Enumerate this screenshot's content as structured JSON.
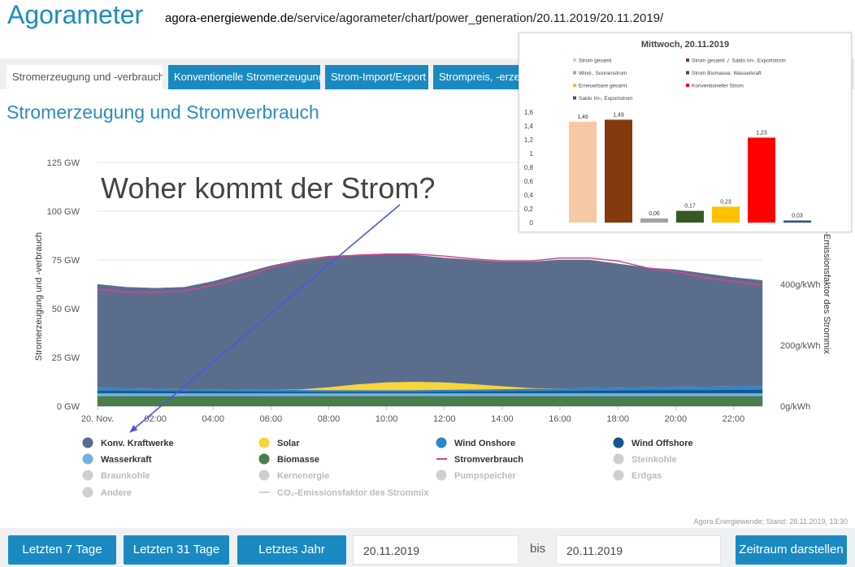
{
  "header": {
    "title": "Agorameter",
    "url_domain": "agora-energiewende.de",
    "url_path": "/service/agorameter/chart/power_generation/20.11.2019/20.11.2019/"
  },
  "tabs": [
    "Stromerzeugung und -verbrauch",
    "Konventionelle Stromerzeugung",
    "Strom-Import/Export",
    "Strompreis, -erzeugung"
  ],
  "section_title": "Stromerzeugung und Stromverbrauch",
  "source": "Agora Energiewende; Stand: 28.11.2019, 13:30",
  "controls": {
    "buttons": [
      "Letzten 7 Tage",
      "Letzten 31 Tage",
      "Letztes Jahr"
    ],
    "date_from": "20.11.2019",
    "between": "bis",
    "date_to": "20.11.2019",
    "submit": "Zeitraum darstellen"
  },
  "chart_data": [
    {
      "type": "stacked-area",
      "annotation": "Woher kommt der Strom?",
      "y_label": "Stromerzeugung und -verbrauch",
      "y2_label": "-Emissionsfaktor des Strommix",
      "categories": [
        "20. Nov.",
        null,
        "02:00",
        null,
        "04:00",
        null,
        "06:00",
        null,
        "08:00",
        null,
        "10:00",
        null,
        "12:00",
        null,
        "14:00",
        null,
        "16:00",
        null,
        "18:00",
        null,
        "20:00",
        null,
        "22:00",
        null
      ],
      "ylim": [
        0,
        125
      ],
      "yticks": [
        {
          "value": 0,
          "label": "0 GW"
        },
        {
          "value": 25,
          "label": "25 GW"
        },
        {
          "value": 50,
          "label": "50 GW"
        },
        {
          "value": 75,
          "label": "75 GW"
        },
        {
          "value": 100,
          "label": "100 GW"
        },
        {
          "value": 125,
          "label": "125 GW"
        }
      ],
      "y2lim": [
        0,
        800
      ],
      "y2ticks": [
        {
          "value": 0,
          "label": "0g/kWh"
        },
        {
          "value": 200,
          "label": "200g/kWh"
        },
        {
          "value": 400,
          "label": "400g/kWh"
        }
      ],
      "grid": true,
      "series": [
        {
          "name": "Konv. Kraftwerke",
          "type": "area",
          "color": "#5b6d8d",
          "values": [
            53.1,
            51.7,
            51.4,
            52.1,
            55.2,
            59.4,
            63.5,
            66.3,
            67.2,
            66.2,
            65.7,
            64.9,
            63.7,
            63.6,
            63.7,
            64.6,
            65.8,
            65.6,
            63.4,
            61.2,
            60,
            57.9,
            55.7,
            54.1
          ]
        },
        {
          "name": "Solar",
          "type": "area",
          "color": "#f8d53a",
          "values": [
            0,
            0,
            0,
            0,
            0,
            0,
            0,
            0.3,
            1.5,
            3.0,
            4.0,
            4.3,
            3.8,
            2.8,
            1.5,
            0.4,
            0,
            0,
            0,
            0,
            0,
            0,
            0,
            0
          ]
        },
        {
          "name": "Wind Onshore",
          "type": "area",
          "color": "#2f87c9",
          "values": [
            1.5,
            1.4,
            1.3,
            1.2,
            1.1,
            1.0,
            1.0,
            0.9,
            0.9,
            0.9,
            0.9,
            0.9,
            1.0,
            1.0,
            1.1,
            1.2,
            1.3,
            1.4,
            1.5,
            1.6,
            1.7,
            1.8,
            1.9,
            2.0
          ]
        },
        {
          "name": "Wind Offshore",
          "type": "area",
          "color": "#15548f",
          "values": [
            1.2,
            1.2,
            1.1,
            1.0,
            1.0,
            0.9,
            0.8,
            0.8,
            0.7,
            0.7,
            0.7,
            0.7,
            0.8,
            0.9,
            1.0,
            1.1,
            1.2,
            1.3,
            1.4,
            1.5,
            1.6,
            1.6,
            1.7,
            1.7
          ]
        },
        {
          "name": "Wasserkraft",
          "type": "area",
          "color": "#73b2de",
          "values": [
            1.5,
            1.5,
            1.5,
            1.5,
            1.5,
            1.5,
            1.5,
            1.5,
            1.5,
            1.5,
            1.5,
            1.5,
            1.5,
            1.5,
            1.5,
            1.5,
            1.5,
            1.5,
            1.5,
            1.5,
            1.5,
            1.5,
            1.5,
            1.5
          ]
        },
        {
          "name": "Biomasse",
          "type": "area",
          "color": "#4a7c4c",
          "values": [
            5.2,
            5.2,
            5.2,
            5.2,
            5.2,
            5.2,
            5.2,
            5.2,
            5.2,
            5.2,
            5.2,
            5.2,
            5.2,
            5.2,
            5.2,
            5.2,
            5.2,
            5.2,
            5.2,
            5.2,
            5.2,
            5.2,
            5.2,
            5.2
          ]
        },
        {
          "name": "Stromverbrauch",
          "type": "line",
          "color": "#d5468b",
          "values": [
            60,
            58.5,
            58.5,
            59,
            62,
            66,
            71,
            74.5,
            76.5,
            77.5,
            78,
            78,
            77,
            75.5,
            74.5,
            74.5,
            76,
            76,
            74.5,
            71,
            69,
            66,
            64,
            62
          ]
        }
      ],
      "inactive_legend": [
        {
          "name": "Steinkohle",
          "marker": "circle"
        },
        {
          "name": "Braunkohle",
          "marker": "circle"
        },
        {
          "name": "Kernenergie",
          "marker": "circle"
        },
        {
          "name": "Pumpspeicher",
          "marker": "circle"
        },
        {
          "name": "Erdgas",
          "marker": "circle"
        },
        {
          "name": "Andere",
          "marker": "circle"
        },
        {
          "name": "CO₂-Emissionsfaktor des Strommix",
          "marker": "line"
        }
      ]
    },
    {
      "type": "bar",
      "title": "Mittwoch, 20.11.2019",
      "categories": [
        "Strom gesamt",
        "Strom gesamt ./. Saldo Im-, Exportstrom",
        "Wind-, Sonnenstrom",
        "Strom Biomasse, Wasserkraft",
        "Erneuerbare gesamt",
        "Konventioneller Strom",
        "Saldo Im-, Exportstrom"
      ],
      "values": [
        1.46,
        1.49,
        0.06,
        0.17,
        0.23,
        1.23,
        0.03
      ],
      "value_labels": [
        "1,46",
        "1,49",
        "0,06",
        "0,17",
        "0,23",
        "1,23",
        "0,03"
      ],
      "colors": [
        "#f7c8a6",
        "#843a0e",
        "#a3a3a3",
        "#385723",
        "#ffc000",
        "#ff0000",
        "#2f4f8f"
      ],
      "ylim": [
        0,
        1.6
      ],
      "yticks": [
        0,
        {
          "value": 0.2,
          "label": "0,2"
        },
        {
          "value": 0.4,
          "label": "0,4"
        },
        {
          "value": 0.6,
          "label": "0,6"
        },
        {
          "value": 0.8,
          "label": "0,8"
        },
        1,
        {
          "value": 1.2,
          "label": "1,2"
        },
        {
          "value": 1.4,
          "label": "1,4"
        },
        {
          "value": 1.6,
          "label": "1,6"
        }
      ]
    }
  ]
}
